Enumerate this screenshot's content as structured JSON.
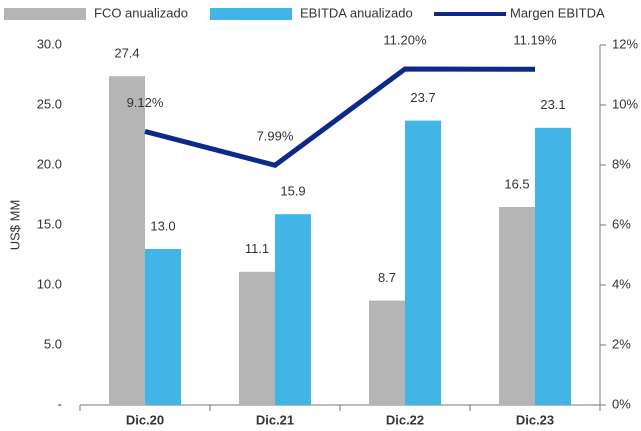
{
  "chart_data": {
    "type": "bar",
    "categories": [
      "Dic.20",
      "Dic.21",
      "Dic.22",
      "Dic.23"
    ],
    "ylabel": "US$ MM",
    "ylim": [
      0,
      30
    ],
    "yticks": [
      {
        "value": 0,
        "label": "-"
      },
      {
        "value": 5,
        "label": "5.0"
      },
      {
        "value": 10,
        "label": "10.0"
      },
      {
        "value": 15,
        "label": "15.0"
      },
      {
        "value": 20,
        "label": "20.0"
      },
      {
        "value": 25,
        "label": "25.0"
      },
      {
        "value": 30,
        "label": "30.0"
      }
    ],
    "y2lim": [
      0,
      12
    ],
    "y2ticks": [
      {
        "value": 0,
        "label": "0%"
      },
      {
        "value": 2,
        "label": "2%"
      },
      {
        "value": 4,
        "label": "4%"
      },
      {
        "value": 6,
        "label": "6%"
      },
      {
        "value": 8,
        "label": "8%"
      },
      {
        "value": 10,
        "label": "10%"
      },
      {
        "value": 12,
        "label": "12%"
      }
    ],
    "legend": "top",
    "series": [
      {
        "name": "FCO anualizado",
        "type": "bar",
        "color": "#b5b5b6",
        "values": [
          27.4,
          11.1,
          8.7,
          16.5
        ]
      },
      {
        "name": "EBITDA anualizado",
        "type": "bar",
        "color": "#41b6e6",
        "values": [
          13.0,
          15.9,
          23.7,
          23.1
        ],
        "value_labels": [
          "13.0",
          "15.9",
          "23.7",
          "23.1"
        ]
      },
      {
        "name": "Margen EBITDA",
        "type": "line",
        "axis": "y2",
        "color": "#0d2a8a",
        "values": [
          9.12,
          7.99,
          11.2,
          11.19
        ],
        "value_labels": [
          "9.12%",
          "7.99%",
          "11.20%",
          "11.19%"
        ]
      }
    ]
  }
}
